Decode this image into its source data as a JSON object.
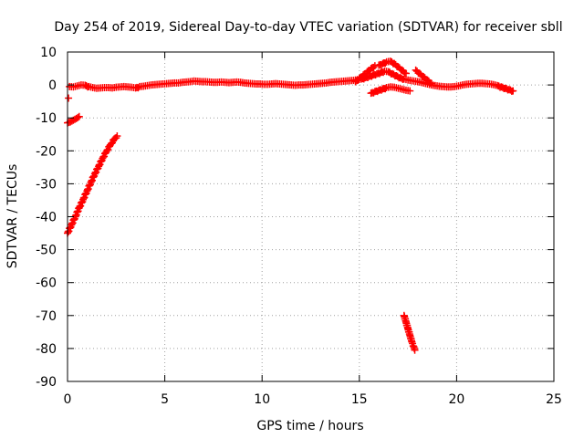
{
  "chart_data": {
    "type": "scatter",
    "title": "Day 254 of 2019, Sidereal Day-to-day VTEC variation (SDTVAR) for receiver sbll",
    "xlabel": "GPS time / hours",
    "ylabel": "SDTVAR / TECUs",
    "xlim": [
      0,
      25
    ],
    "ylim": [
      -90,
      10
    ],
    "xticks": [
      0,
      5,
      10,
      15,
      20,
      25
    ],
    "yticks": [
      10,
      0,
      -10,
      -20,
      -30,
      -40,
      -50,
      -60,
      -70,
      -80,
      -90
    ],
    "grid": true,
    "legend": "none",
    "marker_color": "#ff0000",
    "marker": "plus",
    "series": [
      {
        "points": [
          [
            0.0,
            -45.0
          ],
          [
            0.2,
            -42.5
          ],
          [
            0.4,
            -40.0
          ],
          [
            0.6,
            -37.3
          ],
          [
            0.8,
            -34.8
          ],
          [
            1.0,
            -32.2
          ],
          [
            1.2,
            -29.6
          ],
          [
            1.4,
            -27.0
          ],
          [
            1.6,
            -24.7
          ],
          [
            1.8,
            -22.3
          ],
          [
            2.0,
            -20.2
          ],
          [
            2.2,
            -18.2
          ],
          [
            2.4,
            -16.5
          ],
          [
            2.55,
            -15.5
          ]
        ]
      },
      {
        "points": [
          [
            0.0,
            -11.5
          ],
          [
            0.15,
            -11.2
          ],
          [
            0.3,
            -10.7
          ],
          [
            0.45,
            -10.2
          ],
          [
            0.6,
            -9.6
          ]
        ]
      },
      {
        "points": [
          [
            0.05,
            -4.0
          ]
        ]
      },
      {
        "points": [
          [
            0.1,
            -0.5
          ],
          [
            0.3,
            -0.6
          ],
          [
            0.5,
            -0.3
          ],
          [
            0.7,
            0.0
          ],
          [
            0.9,
            -0.1
          ],
          [
            1.1,
            -0.5
          ],
          [
            1.3,
            -0.8
          ],
          [
            1.5,
            -1.0
          ],
          [
            1.7,
            -0.9
          ],
          [
            1.9,
            -0.8
          ],
          [
            2.1,
            -0.8
          ],
          [
            2.3,
            -0.9
          ],
          [
            2.5,
            -0.7
          ],
          [
            2.7,
            -0.6
          ],
          [
            2.9,
            -0.5
          ],
          [
            3.1,
            -0.6
          ],
          [
            3.3,
            -0.7
          ],
          [
            3.5,
            -0.9
          ],
          [
            3.7,
            -0.5
          ],
          [
            3.9,
            -0.4
          ],
          [
            4.1,
            -0.2
          ],
          [
            4.3,
            0.0
          ],
          [
            4.5,
            0.1
          ],
          [
            4.7,
            0.2
          ],
          [
            4.9,
            0.3
          ],
          [
            5.1,
            0.4
          ],
          [
            5.3,
            0.5
          ],
          [
            5.5,
            0.6
          ],
          [
            5.7,
            0.6
          ],
          [
            5.9,
            0.8
          ],
          [
            6.1,
            0.9
          ],
          [
            6.3,
            1.0
          ],
          [
            6.5,
            1.2
          ],
          [
            6.7,
            1.1
          ],
          [
            6.9,
            1.0
          ],
          [
            7.1,
            1.0
          ],
          [
            7.3,
            0.9
          ],
          [
            7.5,
            0.8
          ],
          [
            7.7,
            0.8
          ],
          [
            7.9,
            0.9
          ],
          [
            8.1,
            0.8
          ],
          [
            8.3,
            0.7
          ],
          [
            8.5,
            0.8
          ],
          [
            8.7,
            0.9
          ],
          [
            8.9,
            0.8
          ],
          [
            9.1,
            0.6
          ],
          [
            9.3,
            0.5
          ],
          [
            9.5,
            0.4
          ],
          [
            9.7,
            0.3
          ],
          [
            9.9,
            0.3
          ],
          [
            10.1,
            0.2
          ],
          [
            10.3,
            0.2
          ],
          [
            10.5,
            0.3
          ],
          [
            10.7,
            0.4
          ],
          [
            10.9,
            0.3
          ],
          [
            11.1,
            0.2
          ],
          [
            11.3,
            0.1
          ],
          [
            11.5,
            0.0
          ],
          [
            11.7,
            -0.1
          ],
          [
            11.9,
            0.0
          ],
          [
            12.1,
            0.0
          ],
          [
            12.3,
            0.1
          ],
          [
            12.5,
            0.2
          ],
          [
            12.7,
            0.3
          ],
          [
            12.9,
            0.4
          ],
          [
            13.1,
            0.5
          ],
          [
            13.3,
            0.6
          ],
          [
            13.5,
            0.8
          ],
          [
            13.7,
            0.9
          ],
          [
            13.9,
            1.0
          ],
          [
            14.1,
            1.1
          ],
          [
            14.3,
            1.2
          ],
          [
            14.5,
            1.3
          ],
          [
            14.7,
            1.4
          ],
          [
            14.9,
            1.6
          ],
          [
            15.1,
            1.8
          ],
          [
            15.3,
            2.2
          ],
          [
            15.5,
            2.6
          ],
          [
            15.7,
            3.0
          ],
          [
            15.9,
            3.4
          ],
          [
            16.1,
            3.8
          ],
          [
            16.3,
            4.2
          ],
          [
            16.5,
            4.0
          ],
          [
            16.7,
            3.4
          ],
          [
            16.9,
            2.8
          ],
          [
            17.1,
            2.2
          ],
          [
            17.3,
            1.8
          ],
          [
            17.5,
            1.5
          ],
          [
            17.7,
            1.3
          ],
          [
            17.9,
            1.1
          ],
          [
            18.1,
            0.9
          ],
          [
            18.3,
            0.6
          ],
          [
            18.5,
            0.3
          ],
          [
            18.7,
            0.0
          ],
          [
            18.9,
            -0.2
          ],
          [
            19.1,
            -0.4
          ],
          [
            19.3,
            -0.5
          ],
          [
            19.5,
            -0.6
          ],
          [
            19.7,
            -0.6
          ],
          [
            19.9,
            -0.5
          ],
          [
            20.1,
            -0.3
          ],
          [
            20.3,
            0.0
          ],
          [
            20.5,
            0.2
          ],
          [
            20.7,
            0.3
          ],
          [
            20.9,
            0.4
          ],
          [
            21.1,
            0.5
          ],
          [
            21.3,
            0.5
          ],
          [
            21.5,
            0.4
          ],
          [
            21.7,
            0.3
          ],
          [
            21.9,
            0.1
          ],
          [
            22.1,
            -0.2
          ],
          [
            22.3,
            -0.6
          ],
          [
            22.5,
            -1.0
          ],
          [
            22.7,
            -1.4
          ],
          [
            22.9,
            -1.8
          ]
        ]
      },
      {
        "points": [
          [
            14.8,
            1.0
          ],
          [
            15.0,
            2.0
          ],
          [
            15.2,
            3.0
          ],
          [
            15.4,
            4.0
          ],
          [
            15.6,
            5.0
          ],
          [
            15.8,
            5.8
          ]
        ]
      },
      {
        "points": [
          [
            16.0,
            6.0
          ],
          [
            16.2,
            6.5
          ],
          [
            16.4,
            7.0
          ],
          [
            16.6,
            7.2
          ],
          [
            16.8,
            6.5
          ],
          [
            17.0,
            5.5
          ],
          [
            17.2,
            4.5
          ],
          [
            17.4,
            3.5
          ]
        ]
      },
      {
        "points": [
          [
            15.6,
            -2.5
          ],
          [
            15.8,
            -2.0
          ],
          [
            16.0,
            -1.6
          ],
          [
            16.2,
            -1.2
          ],
          [
            16.4,
            -0.8
          ],
          [
            16.6,
            -0.6
          ],
          [
            16.8,
            -0.7
          ],
          [
            17.0,
            -1.0
          ],
          [
            17.2,
            -1.3
          ],
          [
            17.4,
            -1.6
          ],
          [
            17.6,
            -1.8
          ]
        ]
      },
      {
        "points": [
          [
            17.9,
            4.5
          ],
          [
            18.1,
            3.5
          ],
          [
            18.3,
            2.5
          ],
          [
            18.5,
            1.5
          ],
          [
            18.7,
            0.5
          ]
        ]
      },
      {
        "points": [
          [
            17.3,
            -70.0
          ],
          [
            17.4,
            -72.0
          ],
          [
            17.5,
            -74.0
          ],
          [
            17.6,
            -76.0
          ],
          [
            17.7,
            -78.0
          ],
          [
            17.8,
            -79.5
          ],
          [
            17.85,
            -80.5
          ]
        ]
      }
    ]
  }
}
